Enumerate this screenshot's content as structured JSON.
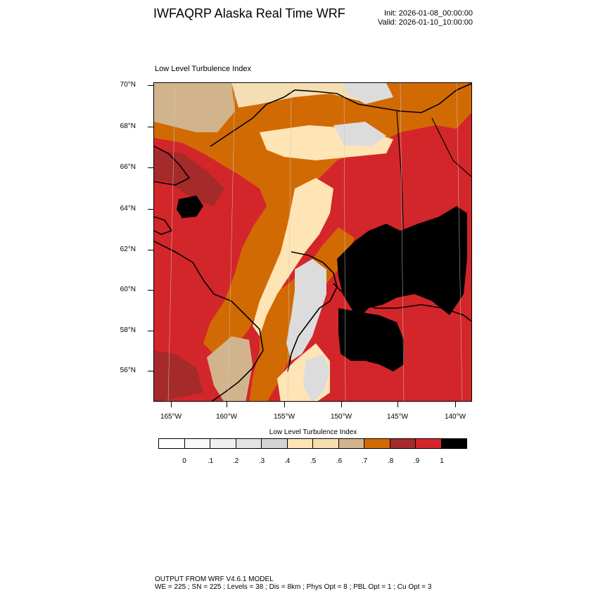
{
  "header": {
    "title": "IWFAQRP Alaska Real Time WRF",
    "init": "Init: 2026-01-08_00:00:00",
    "valid": "Valid: 2026-01-10_10:00:00"
  },
  "map": {
    "panel_title": "Low Level Turbulence Index",
    "lat_labels": [
      "70°N",
      "68°N",
      "66°N",
      "64°N",
      "62°N",
      "60°N",
      "58°N",
      "56°N"
    ],
    "lon_labels": [
      "165°W",
      "160°W",
      "155°W",
      "150°W",
      "145°W",
      "140°W"
    ],
    "colors": {
      "very_high": "#d3262a",
      "dark_red": "#a52a2a",
      "orange": "#d26a04",
      "tan": "#d2b48c",
      "wheat": "#f5deb3",
      "moccasin": "#ffe4b5",
      "light_gray": "#dcdcdc",
      "max": "#000000",
      "boundary": "#000000"
    }
  },
  "colorbar": {
    "title": "Low Level Turbulence Index",
    "colors": [
      "#ffffff",
      "#f8f8f8",
      "#f0f0f0",
      "#e3e3e3",
      "#d4d4d4",
      "#ffe4b5",
      "#f5deb3",
      "#d2b48c",
      "#d26a04",
      "#a52a2a",
      "#d3262a",
      "#000000"
    ],
    "labels": [
      "0",
      ".1",
      ".2",
      ".3",
      ".4",
      ".5",
      ".6",
      ".7",
      ".8",
      ".9",
      "1"
    ]
  },
  "footer": {
    "line1": "OUTPUT FROM WRF V4.6.1 MODEL",
    "line2": "WE = 225 ; SN = 225 ; Levels = 38 ; Dis = 8km ; Phys Opt = 8 ; PBL Opt = 1 ; Cu Opt = 3"
  }
}
